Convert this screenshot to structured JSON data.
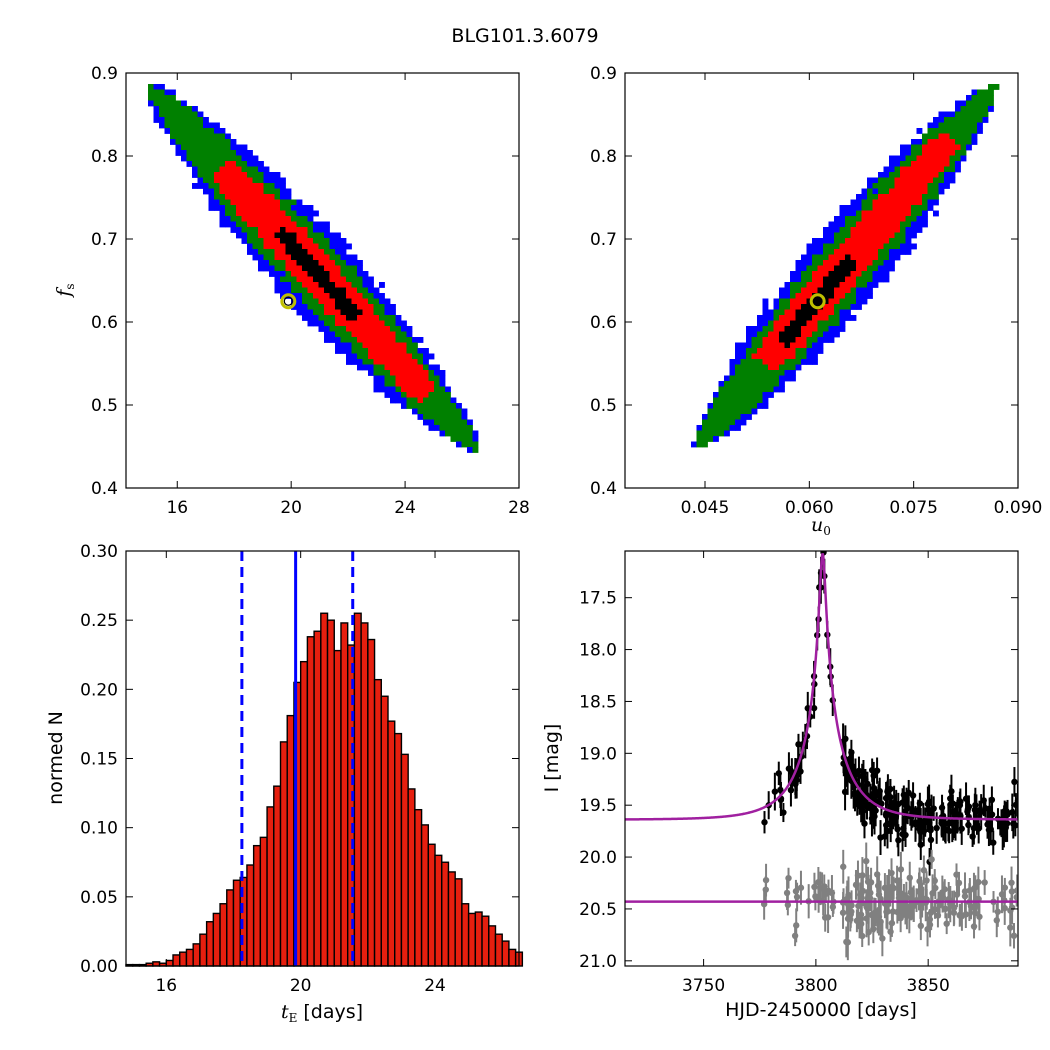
{
  "figure": {
    "title": "BLG101.3.6079"
  },
  "colors": {
    "one_sigma": "#000000",
    "two_sigma": "#ff0000",
    "three_sigma": "#008000",
    "outer": "#0000ff",
    "best_fit_marker_edge": "#bfbf00",
    "histogram_fill": "#e61f0f",
    "stat_lines": "#0000ff",
    "model_curve": "#a020a0",
    "data_points": "#000000",
    "comparison_points": "#808080"
  },
  "chart_data": [
    {
      "type": "scatter",
      "subtype": "2d-histogram",
      "panel": "top-left",
      "xlabel": "",
      "ylabel_math": "f",
      "ylabel_sub": "s",
      "xlim": [
        14.2,
        28
      ],
      "ylim": [
        0.4,
        0.9
      ],
      "xticks": [
        "16",
        "20",
        "24",
        "28"
      ],
      "yticks": [
        "0.4",
        "0.5",
        "0.6",
        "0.7",
        "0.8",
        "0.9"
      ],
      "correlation": "negative",
      "ridge": {
        "x": [
          15.1,
          26.4
        ],
        "y": [
          0.88,
          0.45
        ]
      },
      "best_fit": {
        "x": 19.9,
        "y": 0.625
      },
      "levels": [
        {
          "name": "outer",
          "color": "#0000ff"
        },
        {
          "name": "three_sigma",
          "color": "#008000"
        },
        {
          "name": "two_sigma",
          "color": "#ff0000"
        },
        {
          "name": "one_sigma",
          "color": "#000000"
        }
      ]
    },
    {
      "type": "scatter",
      "subtype": "2d-histogram",
      "panel": "top-right",
      "xlabel_math": "u",
      "xlabel_sub": "0",
      "ylabel": "",
      "xlim": [
        0.0335,
        0.09
      ],
      "ylim": [
        0.4,
        0.9
      ],
      "xticks": [
        "0.045",
        "0.060",
        "0.075",
        "0.090"
      ],
      "yticks": [
        "0.4",
        "0.5",
        "0.6",
        "0.7",
        "0.8",
        "0.9"
      ],
      "correlation": "positive",
      "ridge": {
        "x": [
          0.0443,
          0.0861
        ],
        "y": [
          0.455,
          0.88
        ]
      },
      "best_fit": {
        "x": 0.0612,
        "y": 0.625
      }
    },
    {
      "type": "bar",
      "subtype": "histogram",
      "panel": "bottom-left",
      "xlabel_math": "t",
      "xlabel_sub": "E",
      "xlabel_text": "[days]",
      "ylabel": "normed N",
      "xlim": [
        14.8,
        26.5
      ],
      "ylim": [
        0,
        0.3
      ],
      "xticks": [
        "16",
        "20",
        "24"
      ],
      "yticks": [
        "0.00",
        "0.05",
        "0.10",
        "0.15",
        "0.20",
        "0.25",
        "0.30"
      ],
      "bin_start": 14.8,
      "bin_width": 0.2,
      "values": [
        0.001,
        0.001,
        0.001,
        0.002,
        0.003,
        0.002,
        0.004,
        0.008,
        0.01,
        0.012,
        0.016,
        0.023,
        0.032,
        0.038,
        0.045,
        0.055,
        0.062,
        0.064,
        0.073,
        0.087,
        0.093,
        0.115,
        0.13,
        0.162,
        0.181,
        0.205,
        0.22,
        0.238,
        0.242,
        0.255,
        0.25,
        0.228,
        0.248,
        0.232,
        0.255,
        0.248,
        0.236,
        0.207,
        0.195,
        0.177,
        0.168,
        0.153,
        0.128,
        0.113,
        0.102,
        0.088,
        0.08,
        0.075,
        0.068,
        0.063,
        0.045,
        0.038,
        0.039,
        0.036,
        0.029,
        0.023,
        0.018,
        0.012,
        0.01,
        0.009,
        0.006,
        0.006,
        0.002,
        0.002,
        0.002,
        0.001,
        0.001,
        0.001,
        0.0
      ],
      "median": 19.85,
      "lower": 18.25,
      "upper": 21.55
    },
    {
      "type": "line",
      "subtype": "lightcurve",
      "panel": "bottom-right",
      "xlabel": "HJD-2450000 [days]",
      "ylabel": "I [mag]",
      "xlim": [
        3715,
        3890
      ],
      "ylim": [
        21.05,
        17.05
      ],
      "y_inverted": true,
      "xticks": [
        "3750",
        "3800",
        "3850"
      ],
      "yticks": [
        "17.5",
        "18.0",
        "18.5",
        "19.0",
        "19.5",
        "20.0",
        "20.5",
        "21.0"
      ],
      "model": {
        "t0": 3803,
        "tE": 19.85,
        "u0": 0.061,
        "fs": 0.625,
        "baseline": 19.64
      },
      "comparison_baseline": 20.43,
      "series": [
        {
          "name": "",
          "color": "#000000",
          "count": 240,
          "scatter": 0.13
        },
        {
          "name": "",
          "color": "#808080",
          "count": 200,
          "scatter": 0.14
        }
      ]
    }
  ]
}
